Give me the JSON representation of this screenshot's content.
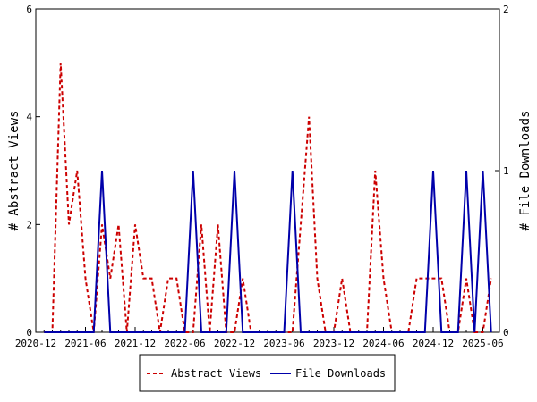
{
  "chart_data": {
    "type": "line",
    "x": [
      "2021-01",
      "2021-02",
      "2021-03",
      "2021-04",
      "2021-05",
      "2021-06",
      "2021-07",
      "2021-08",
      "2021-09",
      "2021-10",
      "2021-11",
      "2021-12",
      "2022-01",
      "2022-02",
      "2022-03",
      "2022-04",
      "2022-05",
      "2022-06",
      "2022-07",
      "2022-08",
      "2022-09",
      "2022-10",
      "2022-11",
      "2022-12",
      "2023-01",
      "2023-02",
      "2023-03",
      "2023-04",
      "2023-05",
      "2023-06",
      "2023-07",
      "2023-08",
      "2023-09",
      "2023-10",
      "2023-11",
      "2023-12",
      "2024-01",
      "2024-02",
      "2024-03",
      "2024-04",
      "2024-05",
      "2024-06",
      "2024-07",
      "2024-08",
      "2024-09",
      "2024-10",
      "2024-11",
      "2024-12",
      "2025-01",
      "2025-02",
      "2025-03",
      "2025-04",
      "2025-05",
      "2025-06",
      "2025-07"
    ],
    "x_range": [
      "2020-12",
      "2025-08"
    ],
    "x_ticks": [
      "2020-12",
      "2021-06",
      "2021-12",
      "2022-06",
      "2022-12",
      "2023-06",
      "2023-12",
      "2024-06",
      "2024-12",
      "2025-06"
    ],
    "y_left": {
      "label": "# Abstract Views",
      "range": [
        0,
        6
      ],
      "ticks": [
        "0",
        "2",
        "4",
        "6"
      ]
    },
    "y_right": {
      "label": "# File Downloads",
      "range": [
        0,
        2
      ],
      "ticks": [
        "0",
        "1",
        "2"
      ]
    },
    "series": [
      {
        "name": "Abstract Views",
        "axis": "left",
        "color": "#cc0000",
        "dash": "dashed",
        "values": [
          0,
          0,
          5,
          2,
          3,
          1,
          0,
          2,
          1,
          2,
          0,
          2,
          1,
          1,
          0,
          1,
          1,
          0,
          0,
          2,
          0,
          2,
          0,
          0,
          1,
          0,
          0,
          0,
          0,
          0,
          0,
          2,
          4,
          1,
          0,
          0,
          1,
          0,
          0,
          0,
          3,
          1,
          0,
          0,
          0,
          1,
          1,
          1,
          1,
          0,
          0,
          1,
          0,
          0,
          1
        ]
      },
      {
        "name": "File Downloads",
        "axis": "right",
        "color": "#0000aa",
        "dash": "solid",
        "values": [
          0,
          0,
          0,
          0,
          0,
          0,
          0,
          1,
          0,
          0,
          0,
          0,
          0,
          0,
          0,
          0,
          0,
          0,
          1,
          0,
          0,
          0,
          0,
          1,
          0,
          0,
          0,
          0,
          0,
          0,
          1,
          0,
          0,
          0,
          0,
          0,
          0,
          0,
          0,
          0,
          0,
          0,
          0,
          0,
          0,
          0,
          0,
          1,
          0,
          0,
          0,
          1,
          0,
          1,
          0
        ]
      }
    ],
    "legend": {
      "position": "bottom"
    },
    "grid": false
  }
}
